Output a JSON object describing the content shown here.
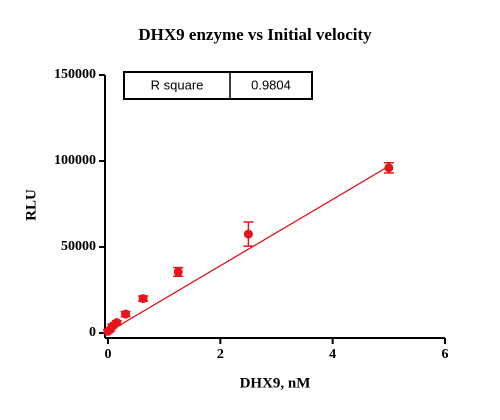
{
  "chart_data": {
    "type": "scatter",
    "title": "DHX9 enzyme vs Initial velocity",
    "x_label": "DHX9, nM",
    "y_label": "RLU",
    "x": [
      0,
      0.039,
      0.078,
      0.156,
      0.3125,
      0.625,
      1.25,
      2.5,
      5
    ],
    "series": [
      {
        "color": "#e8131b",
        "values": [
          1000,
          2000,
          4000,
          6000,
          11000,
          20000,
          35500,
          57500,
          96000
        ],
        "errors": [
          800,
          800,
          1000,
          1200,
          1500,
          1500,
          2500,
          7000,
          3000
        ]
      }
    ],
    "fit": {
      "x": [
        0,
        5
      ],
      "y": [
        500,
        97000
      ],
      "color": "#e8131b"
    },
    "stats_table": {
      "label": "R square",
      "value": "0.9804"
    },
    "xlim": [
      0,
      6
    ],
    "xticks": [
      0,
      2,
      4,
      6
    ],
    "ylim": [
      0,
      150000
    ],
    "yticks": [
      0,
      50000,
      100000,
      150000
    ]
  }
}
